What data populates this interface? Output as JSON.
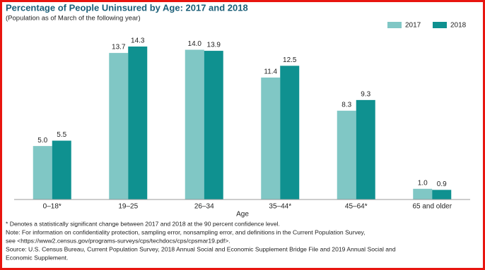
{
  "chart_data": {
    "type": "bar",
    "title": "Percentage of People Uninsured by Age: 2017 and 2018",
    "subtitle": "(Population as of March of the following year)",
    "x_label": "Age",
    "categories": [
      "0–18*",
      "19–25",
      "26–34",
      "35–44*",
      "45–64*",
      "65 and older"
    ],
    "series": [
      {
        "name": "2017",
        "color": "#80c7c5",
        "values": [
          5.0,
          13.7,
          14.0,
          11.4,
          8.3,
          1.0
        ],
        "value_labels": [
          "5.0",
          "13.7",
          "14.0",
          "11.4",
          "8.3",
          "1.0"
        ]
      },
      {
        "name": "2018",
        "color": "#0f9190",
        "values": [
          5.5,
          14.3,
          13.9,
          12.5,
          9.3,
          0.9
        ],
        "value_labels": [
          "5.5",
          "14.3",
          "13.9",
          "12.5",
          "9.3",
          "0.9"
        ]
      }
    ],
    "legend": "top-right",
    "notes": [
      "* Denotes a statistically significant change between 2017 and 2018 at the 90 percent confidence level.",
      "Note: For information on confidentiality protection, sampling error, nonsampling error, and definitions in the Current Population Survey,",
      "see <https://www2.census.gov/programs-surveys/cps/techdocs/cps/cpsmar19.pdf>.",
      "Source: U.S. Census Bureau, Current Population Survey, 2018 Annual Social and Economic Supplement Bridge File and 2019 Annual Social and",
      "Economic Supplement."
    ]
  }
}
